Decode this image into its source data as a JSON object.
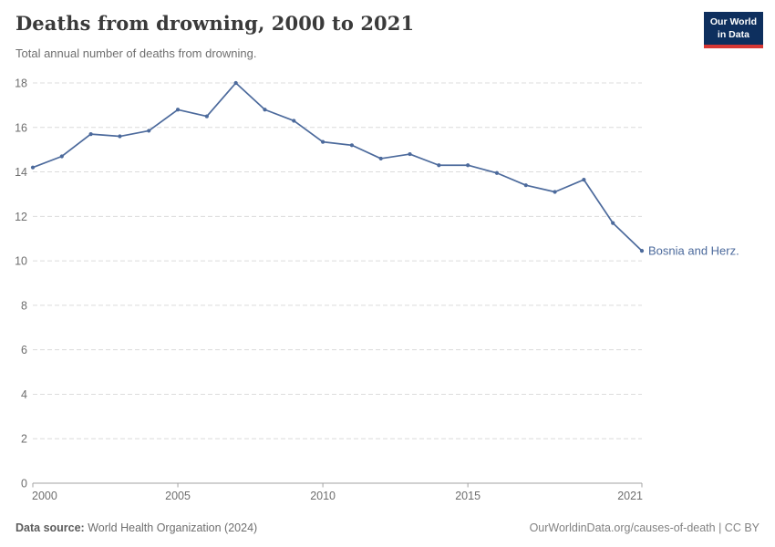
{
  "header": {
    "title": "Deaths from drowning, 2000 to 2021",
    "subtitle": "Total annual number of deaths from drowning.",
    "logo": {
      "line1": "Our World",
      "line2": "in Data",
      "bg_color": "#0e2f5e",
      "bar_color": "#d73734"
    }
  },
  "chart_data": {
    "type": "line",
    "title": "Deaths from drowning, 2000 to 2021",
    "subtitle": "Total annual number of deaths from drowning.",
    "xlabel": "",
    "ylabel": "",
    "xlim": [
      2000,
      2021
    ],
    "ylim": [
      0,
      18
    ],
    "grid": "horizontal-dashed",
    "legend_position": "end-of-line",
    "line_color": "#4C6A9C",
    "xticks": [
      2000,
      2005,
      2010,
      2015,
      2021
    ],
    "yticks": [
      0,
      2,
      4,
      6,
      8,
      10,
      12,
      14,
      16,
      18
    ],
    "series": [
      {
        "name": "Bosnia and Herz.",
        "x": [
          2000,
          2001,
          2002,
          2003,
          2004,
          2005,
          2006,
          2007,
          2008,
          2009,
          2010,
          2011,
          2012,
          2013,
          2014,
          2015,
          2016,
          2017,
          2018,
          2019,
          2020,
          2021
        ],
        "values": [
          14.2,
          14.7,
          15.7,
          15.6,
          15.85,
          16.8,
          16.5,
          18.0,
          16.8,
          16.3,
          15.35,
          15.2,
          14.6,
          14.8,
          14.3,
          14.3,
          13.95,
          13.4,
          13.1,
          13.65,
          11.7,
          10.45
        ]
      }
    ]
  },
  "footer": {
    "source_label": "Data source:",
    "source_value": " World Health Organization (2024)",
    "credit": "OurWorldinData.org/causes-of-death | CC BY"
  }
}
